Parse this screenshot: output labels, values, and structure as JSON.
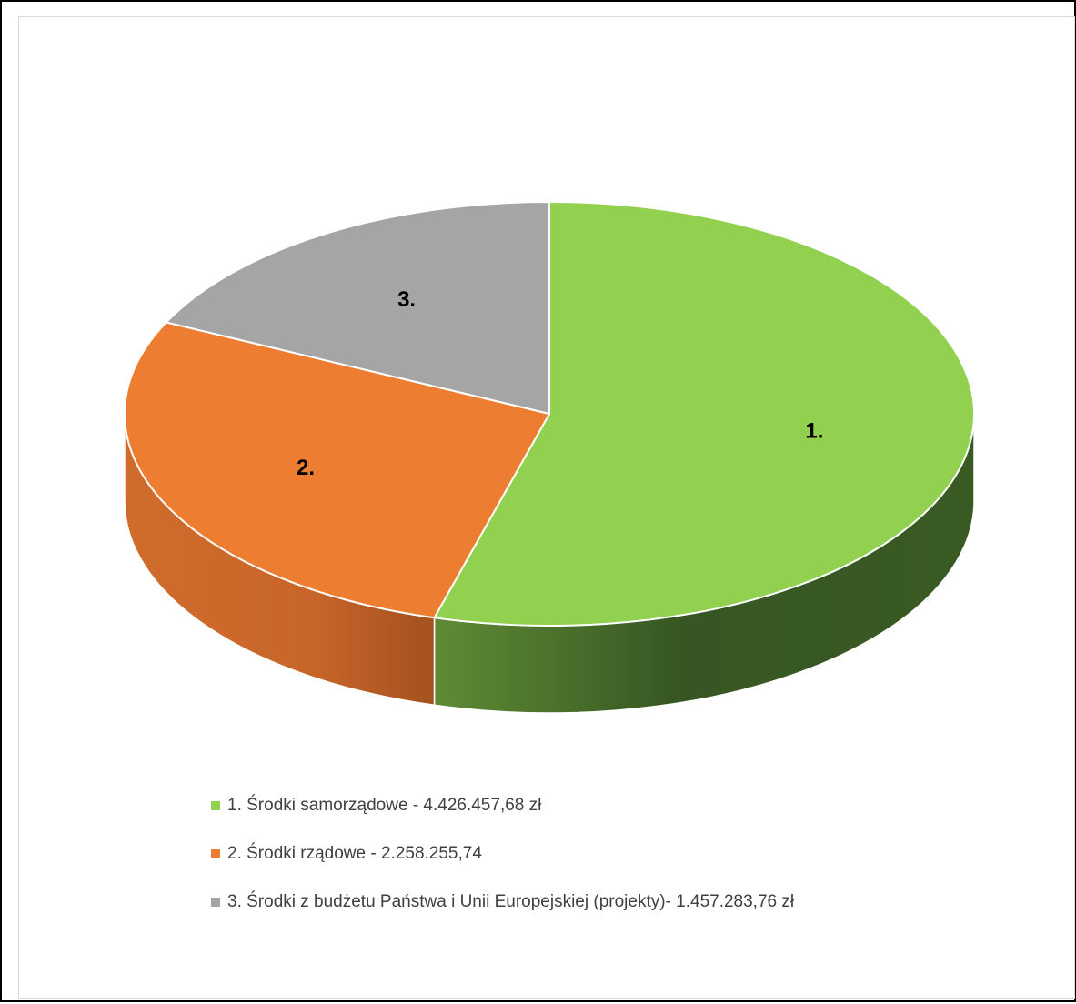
{
  "chart_data": {
    "type": "pie",
    "style": "3d",
    "title": "",
    "slices": [
      {
        "label": "1.",
        "legend": "1. Środki samorządowe - 4.426.457,68 zł",
        "value": 4426457.68,
        "color": "#92d050",
        "side_dark": "#375623",
        "side_light": "#5f8b35"
      },
      {
        "label": "2.",
        "legend": "2. Środki rządowe - 2.258.255,74",
        "value": 2258255.74,
        "color": "#ed7d31",
        "side_dark": "#a5521f",
        "side_light": "#cf6a2a"
      },
      {
        "label": "3.",
        "legend": "3. Środki z budżetu Państwa i Unii Europejskiej (projekty)- 1.457.283,76 zł",
        "value": 1457283.76,
        "color": "#a5a5a5",
        "side_dark": "#7a7a7a",
        "side_light": "#9a9a9a"
      }
    ],
    "legend_position": "bottom"
  }
}
